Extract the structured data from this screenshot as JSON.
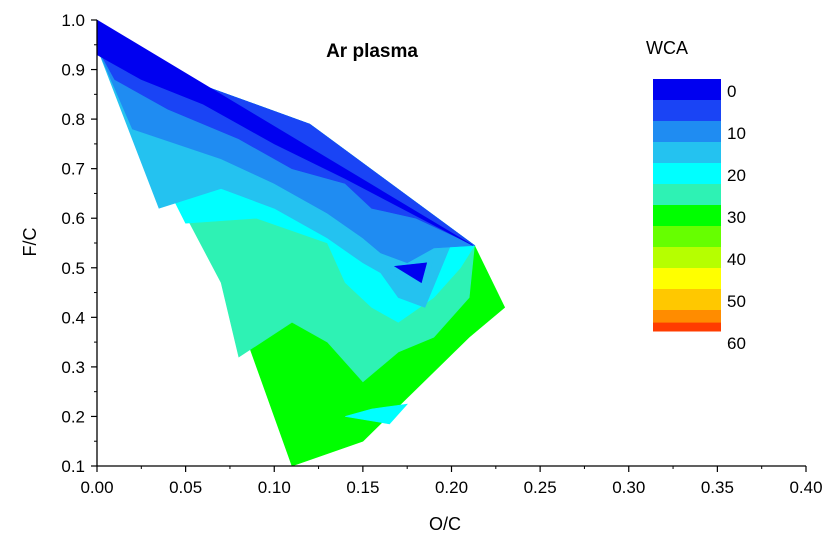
{
  "chart_data": {
    "type": "contour",
    "title": "Ar plasma",
    "xlabel": "O/C",
    "ylabel": "F/C",
    "xlim": [
      0.0,
      0.4
    ],
    "ylim": [
      0.1,
      1.0
    ],
    "xticks": [
      "0.00",
      "0.05",
      "0.10",
      "0.15",
      "0.20",
      "0.25",
      "0.30",
      "0.35",
      "0.40"
    ],
    "yticks": [
      "0.1",
      "0.2",
      "0.3",
      "0.4",
      "0.5",
      "0.6",
      "0.7",
      "0.8",
      "0.9",
      "1.0"
    ],
    "colorbar": {
      "title": "WCA",
      "range": [
        0,
        60
      ],
      "ticks": [
        "0",
        "10",
        "20",
        "30",
        "40",
        "50",
        "60"
      ],
      "levels": [
        {
          "from": 0,
          "to": 5,
          "color": "#0000f0"
        },
        {
          "from": 5,
          "to": 10,
          "color": "#1a44f5"
        },
        {
          "from": 10,
          "to": 15,
          "color": "#1f8cf2"
        },
        {
          "from": 15,
          "to": 20,
          "color": "#24c2f0"
        },
        {
          "from": 20,
          "to": 25,
          "color": "#00ffff"
        },
        {
          "from": 25,
          "to": 30,
          "color": "#2ef2b4"
        },
        {
          "from": 30,
          "to": 35,
          "color": "#00ff00"
        },
        {
          "from": 35,
          "to": 40,
          "color": "#66ff00"
        },
        {
          "from": 40,
          "to": 45,
          "color": "#b6ff00"
        },
        {
          "from": 45,
          "to": 50,
          "color": "#ffff00"
        },
        {
          "from": 50,
          "to": 55,
          "color": "#ffc800"
        },
        {
          "from": 55,
          "to": 58,
          "color": "#ff8c00"
        },
        {
          "from": 58,
          "to": 60,
          "color": "#ff3c00"
        },
        {
          "from": 60,
          "to": 62,
          "color": "#ff0000"
        }
      ]
    },
    "regions": [
      {
        "level": 32,
        "points": [
          [
            0.0,
            0.945
          ],
          [
            0.12,
            0.79
          ],
          [
            0.213,
            0.545
          ],
          [
            0.23,
            0.42
          ],
          [
            0.21,
            0.36
          ],
          [
            0.15,
            0.15
          ],
          [
            0.11,
            0.1
          ],
          [
            0.05,
            0.7
          ]
        ]
      },
      {
        "level": 27,
        "points": [
          [
            0.0,
            0.945
          ],
          [
            0.12,
            0.79
          ],
          [
            0.213,
            0.545
          ],
          [
            0.21,
            0.44
          ],
          [
            0.19,
            0.36
          ],
          [
            0.17,
            0.33
          ],
          [
            0.15,
            0.27
          ],
          [
            0.13,
            0.35
          ],
          [
            0.11,
            0.39
          ],
          [
            0.08,
            0.32
          ],
          [
            0.07,
            0.47
          ]
        ]
      },
      {
        "level": 22,
        "points": [
          [
            0.0,
            0.945
          ],
          [
            0.12,
            0.79
          ],
          [
            0.213,
            0.545
          ],
          [
            0.205,
            0.5
          ],
          [
            0.19,
            0.44
          ],
          [
            0.17,
            0.39
          ],
          [
            0.155,
            0.42
          ],
          [
            0.14,
            0.47
          ],
          [
            0.13,
            0.55
          ],
          [
            0.09,
            0.6
          ],
          [
            0.05,
            0.59
          ]
        ]
      },
      {
        "level": 17,
        "points": [
          [
            0.0,
            0.945
          ],
          [
            0.12,
            0.79
          ],
          [
            0.213,
            0.545
          ],
          [
            0.2,
            0.55
          ],
          [
            0.185,
            0.42
          ],
          [
            0.17,
            0.44
          ],
          [
            0.16,
            0.49
          ],
          [
            0.15,
            0.51
          ],
          [
            0.13,
            0.56
          ],
          [
            0.1,
            0.62
          ],
          [
            0.07,
            0.66
          ],
          [
            0.035,
            0.62
          ]
        ]
      },
      {
        "level": 12,
        "points": [
          [
            0.0,
            0.945
          ],
          [
            0.12,
            0.79
          ],
          [
            0.213,
            0.545
          ],
          [
            0.19,
            0.54
          ],
          [
            0.175,
            0.51
          ],
          [
            0.16,
            0.53
          ],
          [
            0.15,
            0.56
          ],
          [
            0.13,
            0.61
          ],
          [
            0.1,
            0.67
          ],
          [
            0.07,
            0.72
          ],
          [
            0.02,
            0.78
          ]
        ]
      },
      {
        "level": 7,
        "points": [
          [
            0.0,
            0.945
          ],
          [
            0.12,
            0.79
          ],
          [
            0.213,
            0.545
          ],
          [
            0.18,
            0.6
          ],
          [
            0.155,
            0.62
          ],
          [
            0.14,
            0.67
          ],
          [
            0.11,
            0.7
          ],
          [
            0.08,
            0.76
          ],
          [
            0.04,
            0.82
          ],
          [
            0.01,
            0.88
          ]
        ]
      },
      {
        "level": 2,
        "points": [
          [
            0.0,
            1.0
          ],
          [
            0.212,
            0.545
          ],
          [
            0.14,
            0.68
          ],
          [
            0.1,
            0.75
          ],
          [
            0.06,
            0.83
          ],
          [
            0.025,
            0.88
          ],
          [
            0.0,
            0.93
          ]
        ]
      },
      {
        "level": 17,
        "points": [
          [
            0.163,
            0.495
          ],
          [
            0.19,
            0.52
          ],
          [
            0.185,
            0.45
          ],
          [
            0.175,
            0.47
          ]
        ]
      },
      {
        "level": 2,
        "points": [
          [
            0.168,
            0.503
          ],
          [
            0.186,
            0.51
          ],
          [
            0.183,
            0.47
          ]
        ]
      },
      {
        "level": 22,
        "points": [
          [
            0.14,
            0.2
          ],
          [
            0.165,
            0.185
          ],
          [
            0.175,
            0.225
          ],
          [
            0.155,
            0.215
          ]
        ]
      }
    ]
  }
}
